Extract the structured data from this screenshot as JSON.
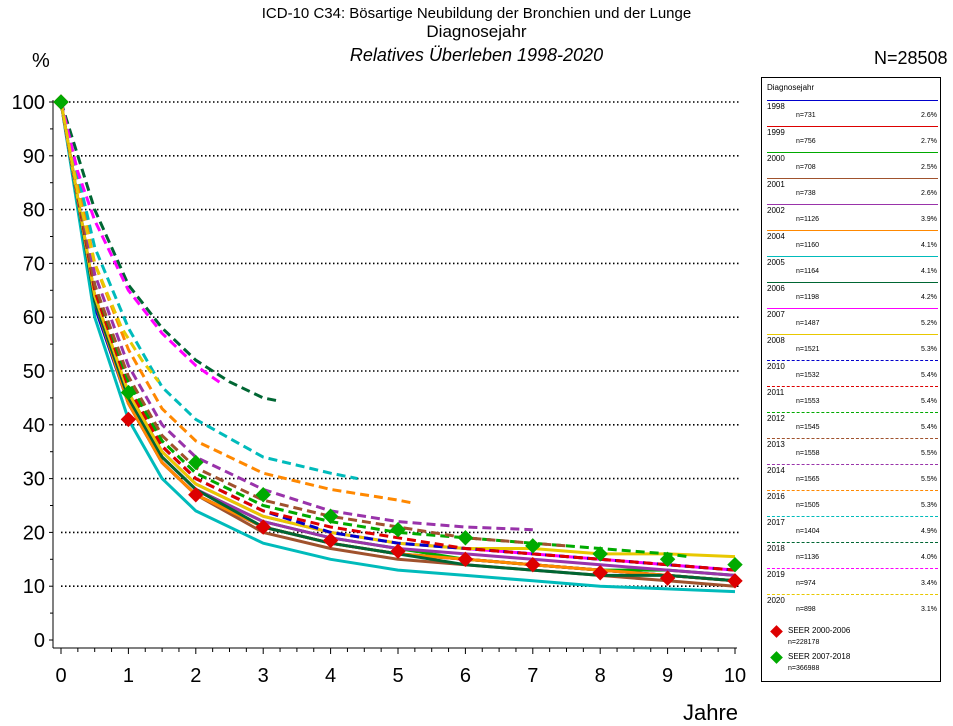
{
  "header": {
    "title": "ICD-10 C34: Bösartige Neubildung der Bronchien und der Lunge",
    "subtitle": "Diagnosejahr",
    "subtitle2": "Relatives Überleben 1998-2020",
    "y_unit": "%",
    "n_total": "N=28508",
    "x_unit": "Jahre"
  },
  "legend": {
    "header": "Diagnosejahr",
    "entries": [
      {
        "year": "1998",
        "n": "n=731",
        "pct": "2.6%",
        "color": "#0000cc",
        "dashed": false
      },
      {
        "year": "1999",
        "n": "n=756",
        "pct": "2.7%",
        "color": "#dd0000",
        "dashed": false
      },
      {
        "year": "2000",
        "n": "n=708",
        "pct": "2.5%",
        "color": "#00aa00",
        "dashed": false
      },
      {
        "year": "2001",
        "n": "n=738",
        "pct": "2.6%",
        "color": "#a0522d",
        "dashed": false
      },
      {
        "year": "2002",
        "n": "n=1126",
        "pct": "3.9%",
        "color": "#9933aa",
        "dashed": false
      },
      {
        "year": "2004",
        "n": "n=1160",
        "pct": "4.1%",
        "color": "#ff8800",
        "dashed": false
      },
      {
        "year": "2005",
        "n": "n=1164",
        "pct": "4.1%",
        "color": "#00bbbb",
        "dashed": false
      },
      {
        "year": "2006",
        "n": "n=1198",
        "pct": "4.2%",
        "color": "#006633",
        "dashed": false
      },
      {
        "year": "2007",
        "n": "n=1487",
        "pct": "5.2%",
        "color": "#ff00ff",
        "dashed": false
      },
      {
        "year": "2008",
        "n": "n=1521",
        "pct": "5.3%",
        "color": "#e8c800",
        "dashed": false
      },
      {
        "year": "2010",
        "n": "n=1532",
        "pct": "5.4%",
        "color": "#0000cc",
        "dashed": true
      },
      {
        "year": "2011",
        "n": "n=1553",
        "pct": "5.4%",
        "color": "#dd0000",
        "dashed": true
      },
      {
        "year": "2012",
        "n": "n=1545",
        "pct": "5.4%",
        "color": "#00aa00",
        "dashed": true
      },
      {
        "year": "2013",
        "n": "n=1558",
        "pct": "5.5%",
        "color": "#a0522d",
        "dashed": true
      },
      {
        "year": "2014",
        "n": "n=1565",
        "pct": "5.5%",
        "color": "#9933aa",
        "dashed": true
      },
      {
        "year": "2016",
        "n": "n=1505",
        "pct": "5.3%",
        "color": "#ff8800",
        "dashed": true
      },
      {
        "year": "2017",
        "n": "n=1404",
        "pct": "4.9%",
        "color": "#00bbbb",
        "dashed": true
      },
      {
        "year": "2018",
        "n": "n=1136",
        "pct": "4.0%",
        "color": "#006633",
        "dashed": true
      },
      {
        "year": "2019",
        "n": "n=974",
        "pct": "3.4%",
        "color": "#ff00ff",
        "dashed": true
      },
      {
        "year": "2020",
        "n": "n=898",
        "pct": "3.1%",
        "color": "#e8c800",
        "dashed": true
      }
    ],
    "seer": [
      {
        "label": "SEER 2000-2006",
        "n": "n=228178",
        "color": "#dd0000"
      },
      {
        "label": "SEER 2007-2018",
        "n": "n=366988",
        "color": "#00aa00"
      }
    ]
  },
  "chart_data": {
    "type": "line",
    "title": "ICD-10 C34: Bösartige Neubildung der Bronchien und der Lunge",
    "xlabel": "Jahre",
    "ylabel": "%",
    "xlim": [
      0,
      10
    ],
    "ylim": [
      0,
      100
    ],
    "x_ticks": [
      "0",
      "1",
      "2",
      "3",
      "4",
      "5",
      "6",
      "7",
      "8",
      "9",
      "10"
    ],
    "y_ticks": [
      "0",
      "10",
      "20",
      "30",
      "40",
      "50",
      "60",
      "70",
      "80",
      "90",
      "100"
    ],
    "grid": "dotted horizontal at 10-unit steps",
    "legend_position": "right",
    "series": [
      {
        "name": "1998",
        "x": [
          0,
          0.5,
          1,
          1.5,
          2,
          3,
          4,
          5,
          6,
          7,
          8,
          9,
          10
        ],
        "y": [
          100,
          62,
          44,
          33,
          27,
          21,
          18,
          16,
          15,
          14,
          13,
          12,
          11
        ]
      },
      {
        "name": "1999",
        "x": [
          0,
          0.5,
          1,
          1.5,
          2,
          3,
          4,
          5,
          6,
          7,
          8,
          9,
          10
        ],
        "y": [
          100,
          63,
          44,
          33,
          27,
          21,
          18,
          16,
          15,
          14,
          13,
          12,
          11
        ]
      },
      {
        "name": "2000",
        "x": [
          0,
          0.5,
          1,
          1.5,
          2,
          3,
          4,
          5,
          6,
          7,
          8,
          9,
          10
        ],
        "y": [
          100,
          64,
          45,
          34,
          28,
          22,
          19,
          17,
          15,
          14,
          13,
          13,
          12
        ]
      },
      {
        "name": "2001",
        "x": [
          0,
          0.5,
          1,
          1.5,
          2,
          3,
          4,
          5,
          6,
          7,
          8,
          9,
          10
        ],
        "y": [
          100,
          63,
          44,
          33,
          27,
          20,
          17,
          15,
          14,
          13,
          12,
          11,
          10
        ]
      },
      {
        "name": "2002",
        "x": [
          0,
          0.5,
          1,
          1.5,
          2,
          3,
          4,
          5,
          6,
          7,
          8,
          9,
          10
        ],
        "y": [
          100,
          64,
          45,
          34,
          28,
          22,
          19,
          17,
          16,
          15,
          14,
          13,
          12
        ]
      },
      {
        "name": "2004",
        "x": [
          0,
          0.5,
          1,
          1.5,
          2,
          3,
          4,
          5,
          6,
          7,
          8,
          9,
          10
        ],
        "y": [
          100,
          63,
          44,
          33,
          27,
          21,
          18,
          16,
          15,
          14,
          13,
          12,
          11
        ]
      },
      {
        "name": "2005",
        "x": [
          0,
          0.5,
          1,
          1.5,
          2,
          3,
          4,
          5,
          6,
          7,
          8,
          9,
          10
        ],
        "y": [
          100,
          60,
          41,
          30,
          24,
          18,
          15,
          13,
          12,
          11,
          10,
          9.5,
          9
        ]
      },
      {
        "name": "2006",
        "x": [
          0,
          0.5,
          1,
          1.5,
          2,
          3,
          4,
          5,
          6,
          7,
          8,
          9,
          10
        ],
        "y": [
          100,
          63,
          45,
          34,
          28,
          21,
          18,
          16,
          14,
          13,
          12,
          12,
          11
        ]
      },
      {
        "name": "2007",
        "x": [
          0,
          0.5,
          1,
          1.5,
          2,
          3,
          4,
          5,
          6,
          7,
          8,
          9,
          10
        ],
        "y": [
          100,
          64,
          46,
          35,
          29,
          23,
          20,
          18,
          17,
          16,
          15,
          14,
          13
        ]
      },
      {
        "name": "2008",
        "x": [
          0,
          0.5,
          1,
          1.5,
          2,
          3,
          4,
          5,
          6,
          7,
          8,
          9,
          10
        ],
        "y": [
          100,
          64,
          46,
          35,
          29,
          23,
          20,
          18,
          17,
          17,
          16,
          16,
          15.5
        ]
      },
      {
        "name": "2010",
        "x": [
          0,
          0.5,
          1,
          1.5,
          2,
          3,
          4,
          5,
          6,
          7,
          8,
          9,
          10
        ],
        "y": [
          100,
          65,
          47,
          36,
          30,
          24,
          20,
          18,
          17,
          16,
          15,
          14,
          13
        ]
      },
      {
        "name": "2011",
        "x": [
          0,
          0.5,
          1,
          1.5,
          2,
          3,
          4,
          5,
          6,
          7,
          8,
          9,
          10
        ],
        "y": [
          100,
          65,
          47,
          36,
          30,
          24,
          21,
          19,
          17,
          16,
          15,
          14,
          13
        ]
      },
      {
        "name": "2012",
        "x": [
          0,
          0.5,
          1,
          1.5,
          2,
          3,
          4,
          5,
          6,
          7,
          8,
          9,
          9.3
        ],
        "y": [
          100,
          66,
          48,
          37,
          31,
          25,
          22,
          20,
          19,
          18,
          17,
          16,
          15.5
        ]
      },
      {
        "name": "2013",
        "x": [
          0,
          0.5,
          1,
          1.5,
          2,
          3,
          4,
          5,
          6,
          7,
          7.5
        ],
        "y": [
          100,
          66,
          49,
          38,
          32,
          26,
          23,
          21,
          19,
          18,
          17.5
        ]
      },
      {
        "name": "2014",
        "x": [
          0,
          0.5,
          1,
          1.5,
          2,
          3,
          4,
          5,
          6,
          7
        ],
        "y": [
          100,
          68,
          51,
          40,
          34,
          28,
          24,
          22,
          21,
          20.5
        ]
      },
      {
        "name": "2016",
        "x": [
          0,
          0.5,
          1,
          1.5,
          2,
          3,
          4,
          5,
          5.2
        ],
        "y": [
          100,
          70,
          54,
          43,
          37,
          31,
          28,
          26,
          25.5
        ]
      },
      {
        "name": "2017",
        "x": [
          0,
          0.5,
          1,
          1.5,
          2,
          3,
          4,
          4.4
        ],
        "y": [
          100,
          73,
          58,
          47,
          41,
          34,
          31,
          30
        ]
      },
      {
        "name": "2018",
        "x": [
          0,
          0.5,
          1,
          1.5,
          2,
          2.5,
          3,
          3.2
        ],
        "y": [
          100,
          80,
          66,
          58,
          52,
          48,
          45,
          44.5
        ]
      },
      {
        "name": "2019",
        "x": [
          0,
          0.25,
          0.5,
          1,
          1.5,
          2,
          2.4
        ],
        "y": [
          100,
          87,
          78,
          65,
          57,
          51,
          47.5
        ]
      },
      {
        "name": "2020",
        "x": [
          0,
          0.25,
          0.5,
          0.9,
          1.2,
          1.45
        ],
        "y": [
          100,
          83,
          70,
          58,
          52,
          48
        ]
      }
    ],
    "seer_series": [
      {
        "name": "SEER 2000-2006",
        "x": [
          0,
          1,
          2,
          3,
          4,
          5,
          6,
          7,
          8,
          9,
          10
        ],
        "y": [
          100,
          41,
          27,
          21,
          18.5,
          16.5,
          15,
          14,
          12.5,
          11.5,
          11
        ]
      },
      {
        "name": "SEER 2007-2018",
        "x": [
          0,
          1,
          2,
          3,
          4,
          5,
          6,
          7,
          8,
          9,
          10
        ],
        "y": [
          100,
          46,
          33,
          27,
          23,
          20.5,
          19,
          17.5,
          16,
          15,
          14
        ]
      }
    ]
  }
}
